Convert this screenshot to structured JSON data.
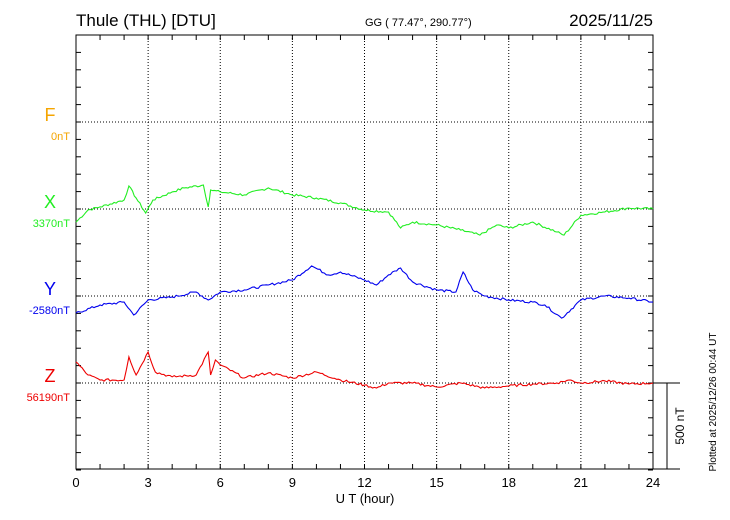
{
  "header": {
    "station": "Thule (THL)  [DTU]",
    "coords": "GG ( 77.47°, 290.77°)",
    "date": "2025/11/25"
  },
  "footer": {
    "plotted_at": "Plotted at 2025/12/26 00:44 UT",
    "scale_label": "500 nT"
  },
  "colors": {
    "F": "#f5a500",
    "X": "#22ee22",
    "Y": "#0000ee",
    "Z": "#ee0000"
  },
  "chart_data": {
    "type": "line",
    "title": "Thule (THL)  [DTU]",
    "xlabel": "U T (hour)",
    "xlim": [
      0,
      24
    ],
    "xticks": [
      "0",
      "3",
      "6",
      "9",
      "12",
      "15",
      "18",
      "21",
      "24"
    ],
    "scale_nT": 500,
    "series": [
      {
        "name": "F",
        "baseline_label": "0nT",
        "x": [],
        "values": []
      },
      {
        "name": "X",
        "baseline_label": "3370nT",
        "x": [
          0,
          0.5,
          1,
          2,
          2.2,
          2.5,
          2.9,
          3.2,
          4,
          4.5,
          5.3,
          5.5,
          5.6,
          6,
          7,
          8,
          9,
          10,
          11,
          12,
          13,
          13.5,
          14,
          15,
          16,
          16.8,
          17.5,
          18,
          19,
          20,
          20.3,
          21,
          22,
          23,
          24
        ],
        "values": [
          -75,
          -6,
          12,
          52,
          132,
          63,
          -23,
          52,
          98,
          121,
          138,
          12,
          109,
          98,
          81,
          121,
          81,
          63,
          35,
          -6,
          -17,
          -109,
          -75,
          -92,
          -121,
          -150,
          -92,
          -109,
          -75,
          -132,
          -150,
          -35,
          -17,
          6,
          0
        ]
      },
      {
        "name": "Y",
        "baseline_label": "-2580nT",
        "x": [
          0,
          1,
          2,
          2.4,
          3,
          4,
          5,
          5.5,
          6,
          7,
          8,
          9,
          9.8,
          10.5,
          11,
          12,
          12.5,
          13,
          13.5,
          14,
          15,
          15.8,
          16.1,
          16.5,
          17,
          18,
          19,
          19.5,
          20.2,
          21,
          22,
          23,
          24
        ],
        "values": [
          -98,
          -52,
          -35,
          -109,
          -23,
          -6,
          23,
          -23,
          23,
          35,
          63,
          92,
          173,
          121,
          138,
          92,
          63,
          121,
          161,
          81,
          35,
          23,
          138,
          35,
          0,
          -23,
          -35,
          -52,
          -127,
          -23,
          0,
          -12,
          -35
        ]
      },
      {
        "name": "Z",
        "baseline_label": "56190nT",
        "x": [
          0,
          0.5,
          1,
          2,
          2.2,
          2.5,
          3,
          3.3,
          4,
          5,
          5.5,
          5.6,
          5.8,
          6,
          7,
          8,
          9,
          10,
          11,
          12,
          12.5,
          13,
          14,
          15,
          16,
          17,
          18,
          19,
          20,
          20.5,
          21,
          22,
          23,
          24
        ],
        "values": [
          121,
          46,
          17,
          17,
          150,
          46,
          178,
          63,
          35,
          46,
          178,
          46,
          132,
          104,
          29,
          58,
          29,
          63,
          17,
          -12,
          -29,
          0,
          0,
          -23,
          0,
          -29,
          -17,
          -6,
          0,
          17,
          0,
          12,
          -6,
          0
        ]
      }
    ]
  }
}
